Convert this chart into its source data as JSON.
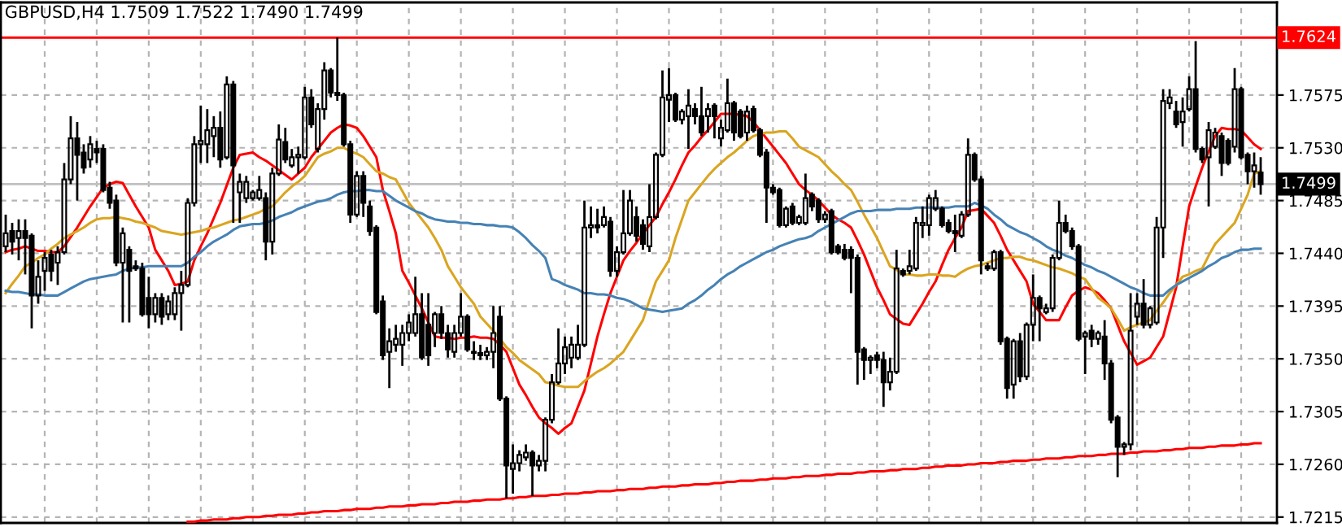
{
  "chart_data": {
    "type": "candlestick",
    "title": "GBPUSD,H4 1.7509 1.7522 1.7490 1.7499",
    "categories": [
      null,
      null,
      null,
      null,
      null,
      null,
      null,
      null,
      null,
      null,
      null,
      null,
      null,
      null,
      null,
      null,
      null,
      null,
      null,
      null,
      null,
      null,
      null,
      null,
      null,
      null,
      null,
      null,
      null,
      null,
      null,
      null,
      null,
      null,
      null,
      null,
      null,
      null,
      null,
      null,
      null,
      null,
      null,
      null,
      null,
      null,
      null,
      null,
      null,
      null,
      null,
      null,
      null,
      null,
      null,
      null,
      null,
      null,
      null,
      null,
      null,
      null,
      null,
      null,
      null,
      null,
      null,
      null,
      null,
      null,
      null,
      null,
      null,
      null,
      null,
      null,
      null,
      null,
      null,
      null,
      null,
      null,
      null,
      null,
      null,
      null,
      null,
      null,
      null,
      null,
      null,
      null,
      null,
      null,
      null,
      null,
      null,
      null,
      null,
      null,
      null,
      null,
      null,
      null,
      null,
      null,
      null,
      null,
      null,
      null,
      null,
      null,
      null,
      null,
      null,
      null,
      null,
      null,
      null,
      null,
      null,
      null,
      null,
      null,
      null,
      null,
      null,
      null,
      null,
      null,
      null,
      null,
      null,
      null,
      null,
      null,
      null,
      null,
      null,
      null,
      null,
      null,
      null,
      null,
      null,
      null,
      null,
      null,
      null,
      null,
      null,
      null,
      null,
      null,
      null,
      null,
      null,
      null,
      null,
      null,
      null,
      null,
      null,
      null,
      null,
      null,
      null,
      null,
      null,
      null,
      null,
      null,
      null,
      null,
      null,
      null,
      null,
      null,
      null,
      null,
      null,
      null,
      null,
      null,
      null,
      null,
      null,
      null,
      null,
      null,
      null,
      null,
      null,
      null
    ],
    "ohlc": [
      [
        1.7446,
        1.7473,
        1.7441,
        1.7457
      ],
      [
        1.7459,
        1.7466,
        1.7439,
        1.745
      ],
      [
        1.7453,
        1.7469,
        1.7434,
        1.7459
      ],
      [
        1.7459,
        1.7469,
        1.7422,
        1.7453
      ],
      [
        1.7455,
        1.7457,
        1.7376,
        1.7404
      ],
      [
        1.7404,
        1.7434,
        1.7397,
        1.742
      ],
      [
        1.7425,
        1.7441,
        1.7408,
        1.7436
      ],
      [
        1.7439,
        1.7443,
        1.7416,
        1.7425
      ],
      [
        1.7432,
        1.7446,
        1.7413,
        1.7441
      ],
      [
        1.7441,
        1.7517,
        1.7439,
        1.7503
      ],
      [
        1.7503,
        1.7557,
        1.7499,
        1.7538
      ],
      [
        1.7538,
        1.7552,
        1.7485,
        1.7524
      ],
      [
        1.7526,
        1.7533,
        1.7508,
        1.7513
      ],
      [
        1.752,
        1.754,
        1.7513,
        1.7533
      ],
      [
        1.7529,
        1.7536,
        1.7517,
        1.7526
      ],
      [
        1.7529,
        1.7533,
        1.7492,
        1.7494
      ],
      [
        1.7496,
        1.7501,
        1.7478,
        1.7483
      ],
      [
        1.7485,
        1.749,
        1.7429,
        1.7432
      ],
      [
        1.7432,
        1.7462,
        1.7381,
        1.7457
      ],
      [
        1.7443,
        1.7446,
        1.7381,
        1.7425
      ],
      [
        1.7429,
        1.7434,
        1.7425,
        1.7427
      ],
      [
        1.7427,
        1.7432,
        1.7386,
        1.7388
      ],
      [
        1.7402,
        1.742,
        1.7376,
        1.7388
      ],
      [
        1.7388,
        1.7406,
        1.7381,
        1.7402
      ],
      [
        1.7402,
        1.7406,
        1.7379,
        1.7386
      ],
      [
        1.7388,
        1.7404,
        1.7383,
        1.7399
      ],
      [
        1.7388,
        1.7411,
        1.7383,
        1.7406
      ],
      [
        1.7406,
        1.7425,
        1.7374,
        1.7413
      ],
      [
        1.7413,
        1.7487,
        1.7411,
        1.7483
      ],
      [
        1.7483,
        1.754,
        1.748,
        1.7533
      ],
      [
        1.7533,
        1.7566,
        1.7517,
        1.7536
      ],
      [
        1.7533,
        1.7563,
        1.7517,
        1.7545
      ],
      [
        1.754,
        1.7557,
        1.7522,
        1.7547
      ],
      [
        1.7547,
        1.7561,
        1.7513,
        1.752
      ],
      [
        1.7522,
        1.7591,
        1.752,
        1.7584
      ],
      [
        1.7584,
        1.7587,
        1.7466,
        1.7515
      ],
      [
        1.7492,
        1.7508,
        1.7466,
        1.7501
      ],
      [
        1.7487,
        1.7506,
        1.7483,
        1.7501
      ],
      [
        1.7487,
        1.7494,
        1.7485,
        1.7492
      ],
      [
        1.7487,
        1.7506,
        1.7485,
        1.7494
      ],
      [
        1.7487,
        1.7492,
        1.7434,
        1.745
      ],
      [
        1.745,
        1.7513,
        1.7439,
        1.7508
      ],
      [
        1.7508,
        1.755,
        1.7506,
        1.7537
      ],
      [
        1.7535,
        1.7547,
        1.7517,
        1.752
      ],
      [
        1.7515,
        1.7529,
        1.7513,
        1.7522
      ],
      [
        1.7522,
        1.7531,
        1.7508,
        1.7524
      ],
      [
        1.7522,
        1.7582,
        1.752,
        1.7573
      ],
      [
        1.7573,
        1.758,
        1.7547,
        1.755
      ],
      [
        1.7529,
        1.7568,
        1.7526,
        1.7563
      ],
      [
        1.7563,
        1.7603,
        1.7554,
        1.7596
      ],
      [
        1.7596,
        1.7598,
        1.7573,
        1.7577
      ],
      [
        1.7577,
        1.7624,
        1.757,
        1.7575
      ],
      [
        1.7575,
        1.7577,
        1.7531,
        1.7533
      ],
      [
        1.7533,
        1.7536,
        1.7466,
        1.7473
      ],
      [
        1.7473,
        1.751,
        1.7471,
        1.7506
      ],
      [
        1.7506,
        1.751,
        1.7471,
        1.7483
      ],
      [
        1.748,
        1.7485,
        1.7455,
        1.7459
      ],
      [
        1.7462,
        1.7464,
        1.7388,
        1.739
      ],
      [
        1.7399,
        1.7404,
        1.7349,
        1.7353
      ],
      [
        1.7356,
        1.7376,
        1.7325,
        1.7365
      ],
      [
        1.7362,
        1.7379,
        1.7356,
        1.7367
      ],
      [
        1.7362,
        1.7379,
        1.7344,
        1.7372
      ],
      [
        1.7372,
        1.7388,
        1.7365,
        1.7381
      ],
      [
        1.7372,
        1.742,
        1.7369,
        1.7388
      ],
      [
        1.7388,
        1.7406,
        1.7349,
        1.7351
      ],
      [
        1.7379,
        1.7406,
        1.7344,
        1.7353
      ],
      [
        1.7372,
        1.739,
        1.736,
        1.7388
      ],
      [
        1.7388,
        1.7395,
        1.7367,
        1.7372
      ],
      [
        1.7372,
        1.7379,
        1.7351,
        1.7358
      ],
      [
        1.7356,
        1.7379,
        1.7351,
        1.7372
      ],
      [
        1.7372,
        1.7406,
        1.7369,
        1.7386
      ],
      [
        1.7386,
        1.7388,
        1.7356,
        1.7358
      ],
      [
        1.7356,
        1.7365,
        1.7349,
        1.7355
      ],
      [
        1.7355,
        1.7362,
        1.7349,
        1.7353
      ],
      [
        1.7353,
        1.736,
        1.7349,
        1.7356
      ],
      [
        1.7356,
        1.7395,
        1.7342,
        1.7372
      ],
      [
        1.7386,
        1.7395,
        1.7314,
        1.7316
      ],
      [
        1.7316,
        1.7318,
        1.7231,
        1.7259
      ],
      [
        1.7256,
        1.7277,
        1.7235,
        1.7261
      ],
      [
        1.7261,
        1.7272,
        1.7254,
        1.7268
      ],
      [
        1.7266,
        1.7277,
        1.7263,
        1.727
      ],
      [
        1.727,
        1.7272,
        1.7233,
        1.7259
      ],
      [
        1.7259,
        1.7268,
        1.7254,
        1.7263
      ],
      [
        1.7263,
        1.73,
        1.7254,
        1.7298
      ],
      [
        1.7298,
        1.7337,
        1.7295,
        1.733
      ],
      [
        1.733,
        1.7376,
        1.7328,
        1.7346
      ],
      [
        1.7346,
        1.7369,
        1.7337,
        1.736
      ],
      [
        1.7351,
        1.7369,
        1.7342,
        1.7362
      ],
      [
        1.7351,
        1.7379,
        1.7349,
        1.7362
      ],
      [
        1.7362,
        1.7485,
        1.736,
        1.7462
      ],
      [
        1.7462,
        1.748,
        1.7453,
        1.7464
      ],
      [
        1.7464,
        1.7478,
        1.7457,
        1.7462
      ],
      [
        1.7464,
        1.748,
        1.7462,
        1.7471
      ],
      [
        1.7467,
        1.7471,
        1.742,
        1.7425
      ],
      [
        1.7425,
        1.7446,
        1.742,
        1.7441
      ],
      [
        1.7441,
        1.7494,
        1.7439,
        1.7457
      ],
      [
        1.7457,
        1.7494,
        1.7455,
        1.7485
      ],
      [
        1.7471,
        1.748,
        1.745,
        1.7455
      ],
      [
        1.7464,
        1.7469,
        1.7443,
        1.7448
      ],
      [
        1.7446,
        1.7499,
        1.7441,
        1.7471
      ],
      [
        1.7471,
        1.7526,
        1.7469,
        1.7524
      ],
      [
        1.7524,
        1.7596,
        1.7522,
        1.7573
      ],
      [
        1.7571,
        1.7598,
        1.7552,
        1.7575
      ],
      [
        1.7575,
        1.7577,
        1.7552,
        1.7554
      ],
      [
        1.7554,
        1.7563,
        1.755,
        1.7561
      ],
      [
        1.7557,
        1.758,
        1.7529,
        1.7566
      ],
      [
        1.7563,
        1.7568,
        1.755,
        1.7557
      ],
      [
        1.7557,
        1.7582,
        1.754,
        1.7543
      ],
      [
        1.7557,
        1.7568,
        1.7543,
        1.7563
      ],
      [
        1.7566,
        1.7568,
        1.7538,
        1.7557
      ],
      [
        1.7538,
        1.7554,
        1.7531,
        1.7547
      ],
      [
        1.7545,
        1.7589,
        1.7543,
        1.7568
      ],
      [
        1.7568,
        1.757,
        1.7536,
        1.7543
      ],
      [
        1.7561,
        1.7563,
        1.7538,
        1.754
      ],
      [
        1.7543,
        1.7566,
        1.7536,
        1.7561
      ],
      [
        1.7563,
        1.7566,
        1.7543,
        1.7545
      ],
      [
        1.7545,
        1.7547,
        1.7522,
        1.7524
      ],
      [
        1.7526,
        1.7529,
        1.7466,
        1.7496
      ],
      [
        1.7496,
        1.7499,
        1.749,
        1.7492
      ],
      [
        1.7494,
        1.7496,
        1.7462,
        1.7464
      ],
      [
        1.7464,
        1.748,
        1.7462,
        1.7478
      ],
      [
        1.748,
        1.7483,
        1.7464,
        1.7466
      ],
      [
        1.7466,
        1.7473,
        1.7464,
        1.7471
      ],
      [
        1.7466,
        1.7508,
        1.7464,
        1.7487
      ],
      [
        1.749,
        1.7492,
        1.7476,
        1.748
      ],
      [
        1.7485,
        1.7487,
        1.7466,
        1.7469
      ],
      [
        1.7469,
        1.7476,
        1.7466,
        1.7473
      ],
      [
        1.7476,
        1.7478,
        1.7439,
        1.7441
      ],
      [
        1.7446,
        1.7448,
        1.7439,
        1.7441
      ],
      [
        1.7443,
        1.7448,
        1.7434,
        1.7436
      ],
      [
        1.7443,
        1.7446,
        1.7406,
        1.7436
      ],
      [
        1.7436,
        1.7439,
        1.7328,
        1.7356
      ],
      [
        1.7358,
        1.736,
        1.7332,
        1.7349
      ],
      [
        1.7349,
        1.7353,
        1.7337,
        1.7351
      ],
      [
        1.7353,
        1.7356,
        1.7342,
        1.7349
      ],
      [
        1.7349,
        1.7356,
        1.7309,
        1.733
      ],
      [
        1.733,
        1.7351,
        1.7323,
        1.7339
      ],
      [
        1.7339,
        1.7443,
        1.7337,
        1.7427
      ],
      [
        1.7425,
        1.7427,
        1.742,
        1.7422
      ],
      [
        1.7425,
        1.7443,
        1.7422,
        1.7429
      ],
      [
        1.7427,
        1.7471,
        1.7425,
        1.7466
      ],
      [
        1.7464,
        1.748,
        1.7453,
        1.7466
      ],
      [
        1.7464,
        1.749,
        1.7455,
        1.7487
      ],
      [
        1.7478,
        1.7494,
        1.7476,
        1.7487
      ],
      [
        1.7478,
        1.748,
        1.7462,
        1.7464
      ],
      [
        1.7466,
        1.7469,
        1.7457,
        1.7459
      ],
      [
        1.7459,
        1.7473,
        1.7441,
        1.7457
      ],
      [
        1.7455,
        1.7476,
        1.7453,
        1.7473
      ],
      [
        1.7473,
        1.7538,
        1.7471,
        1.7524
      ],
      [
        1.7524,
        1.7526,
        1.7501,
        1.7503
      ],
      [
        1.7503,
        1.7506,
        1.7422,
        1.7434
      ],
      [
        1.7429,
        1.7432,
        1.7425,
        1.7427
      ],
      [
        1.7427,
        1.7443,
        1.7425,
        1.7441
      ],
      [
        1.7441,
        1.7443,
        1.7362,
        1.7365
      ],
      [
        1.7367,
        1.7369,
        1.7316,
        1.7325
      ],
      [
        1.7328,
        1.7367,
        1.7316,
        1.7365
      ],
      [
        1.7365,
        1.7372,
        1.733,
        1.7335
      ],
      [
        1.7335,
        1.7381,
        1.7332,
        1.7379
      ],
      [
        1.7379,
        1.7422,
        1.7365,
        1.7402
      ],
      [
        1.7402,
        1.7404,
        1.7365,
        1.7393
      ],
      [
        1.739,
        1.7397,
        1.7388,
        1.7393
      ],
      [
        1.7393,
        1.7439,
        1.739,
        1.7436
      ],
      [
        1.7436,
        1.7485,
        1.7434,
        1.7466
      ],
      [
        1.7466,
        1.7473,
        1.7457,
        1.7459
      ],
      [
        1.7459,
        1.7462,
        1.7443,
        1.7446
      ],
      [
        1.7446,
        1.7448,
        1.7365,
        1.7367
      ],
      [
        1.7369,
        1.7374,
        1.7337,
        1.7372
      ],
      [
        1.7374,
        1.7379,
        1.736,
        1.7367
      ],
      [
        1.7367,
        1.7374,
        1.7362,
        1.7372
      ],
      [
        1.7369,
        1.7383,
        1.7332,
        1.7346
      ],
      [
        1.7346,
        1.7349,
        1.7295,
        1.7298
      ],
      [
        1.73,
        1.7302,
        1.7249,
        1.7275
      ],
      [
        1.7275,
        1.7279,
        1.7268,
        1.7277
      ],
      [
        1.7277,
        1.7406,
        1.7272,
        1.7374
      ],
      [
        1.7386,
        1.7406,
        1.7379,
        1.7397
      ],
      [
        1.7397,
        1.7418,
        1.7376,
        1.7379
      ],
      [
        1.7379,
        1.7395,
        1.7376,
        1.7393
      ],
      [
        1.7381,
        1.7471,
        1.7379,
        1.7462
      ],
      [
        1.7462,
        1.758,
        1.7436,
        1.757
      ],
      [
        1.7568,
        1.758,
        1.7563,
        1.7573
      ],
      [
        1.7561,
        1.757,
        1.7547,
        1.755
      ],
      [
        1.7552,
        1.7573,
        1.7531,
        1.7561
      ],
      [
        1.7563,
        1.7591,
        1.7561,
        1.758
      ],
      [
        1.758,
        1.7621,
        1.7526,
        1.7529
      ],
      [
        1.7529,
        1.7531,
        1.7517,
        1.752
      ],
      [
        1.7522,
        1.7552,
        1.748,
        1.7545
      ],
      [
        1.7531,
        1.7547,
        1.7529,
        1.7543
      ],
      [
        1.754,
        1.7543,
        1.7506,
        1.7517
      ],
      [
        1.7536,
        1.7538,
        1.7515,
        1.7517
      ],
      [
        1.7531,
        1.7598,
        1.7526,
        1.758
      ],
      [
        1.758,
        1.7582,
        1.752,
        1.7522
      ],
      [
        1.7524,
        1.7526,
        1.7499,
        1.751
      ],
      [
        1.751,
        1.7526,
        1.7496,
        1.7515
      ],
      [
        1.7509,
        1.7522,
        1.749,
        1.7499
      ]
    ],
    "color": "#000000",
    "ylim": [
      1.721,
      1.7654
    ],
    "yticks": [
      1.7215,
      {
        "value": 1.726,
        "label": "1.7260"
      },
      1.7305,
      {
        "value": 1.735,
        "label": "1.7350"
      },
      1.7395,
      {
        "value": 1.744,
        "label": "1.7440"
      },
      1.7485,
      {
        "value": 1.753,
        "label": "1.7530"
      },
      1.7575
    ],
    "grid": true,
    "tick_labels": "y",
    "ref_lines": [
      {
        "axis": "y",
        "value": 1.7624,
        "label": "1.7624",
        "color": "#ff0000"
      },
      {
        "axis": "y",
        "value": 1.7499,
        "label": "1.7499",
        "color": "#c0c0c0"
      }
    ],
    "series": [
      {
        "type": "line",
        "color": "#ff0000",
        "values": [
          1.7441,
          1.7443,
          1.7444,
          1.7446,
          1.7444,
          1.7442,
          1.7442,
          1.7441,
          1.7441,
          1.7446,
          1.7454,
          1.7462,
          1.7471,
          1.748,
          1.7488,
          1.7496,
          1.7499,
          1.7501,
          1.75,
          1.749,
          1.748,
          1.7471,
          1.7462,
          1.7443,
          1.7434,
          1.7425,
          1.7413,
          1.7414,
          1.7416,
          1.7434,
          1.7446,
          1.7457,
          1.747,
          1.7483,
          1.7498,
          1.7513,
          1.7524,
          1.7525,
          1.7526,
          1.7522,
          1.7519,
          1.7515,
          1.7511,
          1.7507,
          1.7503,
          1.7508,
          1.7513,
          1.7522,
          1.7529,
          1.7536,
          1.7543,
          1.7547,
          1.755,
          1.7549,
          1.7547,
          1.754,
          1.7531,
          1.7522,
          1.7494,
          1.7476,
          1.7457,
          1.7425,
          1.7415,
          1.7404,
          1.7393,
          1.7381,
          1.7369,
          1.7368,
          1.7368,
          1.7367,
          1.7368,
          1.7368,
          1.7369,
          1.7368,
          1.7368,
          1.7367,
          1.7362,
          1.7356,
          1.7342,
          1.7328,
          1.7319,
          1.7309,
          1.73,
          1.7295,
          1.7291,
          1.7286,
          1.7291,
          1.7295,
          1.7309,
          1.7323,
          1.7346,
          1.7369,
          1.7388,
          1.7406,
          1.742,
          1.7434,
          1.7442,
          1.7449,
          1.7457,
          1.7464,
          1.7471,
          1.7482,
          1.7492,
          1.7503,
          1.7515,
          1.7526,
          1.7532,
          1.7539,
          1.7545,
          1.7552,
          1.7559,
          1.7559,
          1.7559,
          1.7558,
          1.7557,
          1.7552,
          1.7545,
          1.7538,
          1.7531,
          1.7524,
          1.7517,
          1.7508,
          1.7499,
          1.7494,
          1.749,
          1.7485,
          1.7479,
          1.7473,
          1.7469,
          1.7466,
          1.7462,
          1.7451,
          1.7439,
          1.7425,
          1.7411,
          1.74,
          1.7388,
          1.7384,
          1.738,
          1.7379,
          1.7388,
          1.7397,
          1.7407,
          1.7416,
          1.743,
          1.7443,
          1.7453,
          1.7462,
          1.7476,
          1.7477,
          1.7478,
          1.7472,
          1.7466,
          1.7455,
          1.7443,
          1.7434,
          1.7425,
          1.7416,
          1.7397,
          1.739,
          1.7383,
          1.7383,
          1.7383,
          1.7394,
          1.7404,
          1.7408,
          1.7411,
          1.7409,
          1.7406,
          1.74,
          1.7393,
          1.7379,
          1.7365,
          1.7355,
          1.7345,
          1.7348,
          1.7351,
          1.736,
          1.7369,
          1.739,
          1.7411,
          1.7446,
          1.748,
          1.7497,
          1.7513,
          1.7527,
          1.754,
          1.7547,
          1.7546,
          1.7546,
          1.7545,
          1.7539,
          1.7533,
          1.7529
        ]
      },
      {
        "type": "line",
        "color": "#daa520",
        "values": [
          1.7406,
          1.7414,
          1.7421,
          1.7429,
          1.7432,
          1.7436,
          1.7439,
          1.7444,
          1.7448,
          1.7453,
          1.7456,
          1.7459,
          1.7462,
          1.7466,
          1.7469,
          1.747,
          1.747,
          1.7471,
          1.747,
          1.7469,
          1.7467,
          1.7466,
          1.7464,
          1.7462,
          1.7459,
          1.7458,
          1.7457,
          1.7456,
          1.7457,
          1.7458,
          1.7459,
          1.7461,
          1.7462,
          1.7464,
          1.7466,
          1.7468,
          1.7469,
          1.7471,
          1.7473,
          1.7475,
          1.7478,
          1.748,
          1.7486,
          1.7492,
          1.7497,
          1.7501,
          1.7506,
          1.7514,
          1.7522,
          1.7525,
          1.7527,
          1.753,
          1.753,
          1.7527,
          1.7525,
          1.7522,
          1.7516,
          1.751,
          1.7508,
          1.7505,
          1.7503,
          1.7493,
          1.7483,
          1.7476,
          1.7469,
          1.7462,
          1.7453,
          1.7443,
          1.7429,
          1.742,
          1.7411,
          1.7404,
          1.7397,
          1.7386,
          1.738,
          1.7374,
          1.7367,
          1.736,
          1.7355,
          1.7349,
          1.7345,
          1.7341,
          1.7337,
          1.733,
          1.7329,
          1.7327,
          1.7326,
          1.7326,
          1.7326,
          1.7331,
          1.7335,
          1.7339,
          1.7342,
          1.7346,
          1.7351,
          1.7356,
          1.7365,
          1.7374,
          1.7383,
          1.74,
          1.7416,
          1.7425,
          1.7434,
          1.7453,
          1.7469,
          1.7485,
          1.7492,
          1.7499,
          1.7506,
          1.7512,
          1.7517,
          1.7522,
          1.7526,
          1.7531,
          1.7536,
          1.754,
          1.7542,
          1.7543,
          1.7543,
          1.7544,
          1.7544,
          1.7538,
          1.7531,
          1.7528,
          1.7525,
          1.7522,
          1.7516,
          1.751,
          1.7505,
          1.7499,
          1.7494,
          1.7484,
          1.7473,
          1.7463,
          1.7453,
          1.7441,
          1.7429,
          1.7426,
          1.7422,
          1.7422,
          1.7421,
          1.7421,
          1.7422,
          1.7422,
          1.7421,
          1.7421,
          1.742,
          1.7424,
          1.7427,
          1.7429,
          1.743,
          1.7432,
          1.7434,
          1.7436,
          1.7436,
          1.7437,
          1.7437,
          1.7435,
          1.7434,
          1.7432,
          1.743,
          1.7428,
          1.7427,
          1.7425,
          1.7423,
          1.742,
          1.7418,
          1.741,
          1.7402,
          1.7398,
          1.7393,
          1.7384,
          1.7374,
          1.7377,
          1.7379,
          1.7381,
          1.7383,
          1.7391,
          1.7398,
          1.7406,
          1.7413,
          1.742,
          1.7422,
          1.7425,
          1.7427,
          1.7438,
          1.7448,
          1.7454,
          1.746,
          1.7466,
          1.7478,
          1.749,
          1.7508,
          1.751
        ]
      },
      {
        "type": "line",
        "color": "#4682b4",
        "values": [
          1.7408,
          1.7407,
          1.7407,
          1.7406,
          1.7405,
          1.7405,
          1.7404,
          1.7404,
          1.7404,
          1.7407,
          1.741,
          1.7413,
          1.7416,
          1.7418,
          1.7419,
          1.742,
          1.7421,
          1.7422,
          1.7425,
          1.7427,
          1.7428,
          1.7428,
          1.7429,
          1.7429,
          1.7429,
          1.7429,
          1.7429,
          1.7429,
          1.7432,
          1.7437,
          1.7441,
          1.7446,
          1.745,
          1.7453,
          1.7456,
          1.746,
          1.7463,
          1.7464,
          1.7465,
          1.7465,
          1.7466,
          1.7468,
          1.7471,
          1.7473,
          1.7475,
          1.7478,
          1.748,
          1.7482,
          1.7484,
          1.7485,
          1.7487,
          1.749,
          1.7492,
          1.7493,
          1.7493,
          1.7494,
          1.7494,
          1.7493,
          1.7493,
          1.7489,
          1.7485,
          1.7482,
          1.7479,
          1.7476,
          1.7474,
          1.7471,
          1.7469,
          1.7468,
          1.7467,
          1.7467,
          1.7466,
          1.7466,
          1.7465,
          1.7465,
          1.7464,
          1.7464,
          1.7463,
          1.7463,
          1.7462,
          1.7458,
          1.7453,
          1.7447,
          1.7442,
          1.7436,
          1.7418,
          1.7416,
          1.7413,
          1.7411,
          1.7409,
          1.7406,
          1.7406,
          1.7405,
          1.7405,
          1.7404,
          1.7402,
          1.7401,
          1.7399,
          1.7396,
          1.7393,
          1.7392,
          1.7391,
          1.739,
          1.7391,
          1.7392,
          1.7393,
          1.7397,
          1.74,
          1.7404,
          1.7409,
          1.7413,
          1.7418,
          1.7422,
          1.7425,
          1.7429,
          1.7432,
          1.7435,
          1.7438,
          1.7441,
          1.7443,
          1.7446,
          1.7448,
          1.745,
          1.7452,
          1.7453,
          1.7455,
          1.7459,
          1.7462,
          1.7465,
          1.7468,
          1.7471,
          1.7474,
          1.7476,
          1.7476,
          1.7476,
          1.7477,
          1.7477,
          1.7477,
          1.7478,
          1.7478,
          1.7478,
          1.7479,
          1.7479,
          1.7479,
          1.7479,
          1.7479,
          1.7479,
          1.748,
          1.748,
          1.748,
          1.7483,
          1.7481,
          1.7478,
          1.7473,
          1.7469,
          1.7464,
          1.7461,
          1.7458,
          1.7456,
          1.7453,
          1.745,
          1.7446,
          1.7443,
          1.7441,
          1.7438,
          1.7436,
          1.7433,
          1.743,
          1.7428,
          1.7425,
          1.7423,
          1.742,
          1.7417,
          1.7414,
          1.7411,
          1.7409,
          1.7406,
          1.7404,
          1.7404,
          1.7404,
          1.7409,
          1.7413,
          1.7416,
          1.7419,
          1.7422,
          1.7425,
          1.7429,
          1.7432,
          1.7436,
          1.7438,
          1.7441,
          1.7443,
          1.7443,
          1.7444,
          1.7444
        ]
      },
      {
        "type": "line",
        "color": "#ff0000",
        "values": [
          null,
          null,
          null,
          null,
          null,
          null,
          null,
          null,
          null,
          null,
          null,
          null,
          null,
          null,
          null,
          null,
          null,
          null,
          null,
          null,
          null,
          null,
          null,
          null,
          null,
          null,
          null,
          null,
          1.7211,
          1.7211,
          1.7212,
          1.7212,
          1.7213,
          1.7213,
          1.7213,
          1.7214,
          1.7214,
          1.7215,
          1.7215,
          1.7215,
          1.7216,
          1.7216,
          1.7217,
          1.7217,
          1.7217,
          1.7218,
          1.7218,
          1.7219,
          1.7219,
          1.722,
          1.722,
          1.722,
          1.7221,
          1.7221,
          1.7222,
          1.7222,
          1.7222,
          1.7223,
          1.7223,
          1.7224,
          1.7224,
          1.7224,
          1.7225,
          1.7225,
          1.7226,
          1.7226,
          1.7226,
          1.7227,
          1.7227,
          1.7228,
          1.7228,
          1.7228,
          1.7229,
          1.7229,
          1.723,
          1.723,
          1.723,
          1.7231,
          1.7231,
          1.7232,
          1.7232,
          1.7233,
          1.7233,
          1.7233,
          1.7234,
          1.7234,
          1.7235,
          1.7235,
          1.7235,
          1.7236,
          1.7236,
          1.7237,
          1.7237,
          1.7237,
          1.7238,
          1.7238,
          1.7239,
          1.7239,
          1.7239,
          1.724,
          1.724,
          1.7241,
          1.7241,
          1.7241,
          1.7242,
          1.7242,
          1.7243,
          1.7243,
          1.7243,
          1.7244,
          1.7244,
          1.7245,
          1.7245,
          1.7246,
          1.7246,
          1.7246,
          1.7247,
          1.7247,
          1.7248,
          1.7248,
          1.7248,
          1.7249,
          1.7249,
          1.725,
          1.725,
          1.725,
          1.7251,
          1.7251,
          1.7252,
          1.7252,
          1.7252,
          1.7253,
          1.7253,
          1.7254,
          1.7254,
          1.7254,
          1.7255,
          1.7255,
          1.7256,
          1.7256,
          1.7256,
          1.7257,
          1.7257,
          1.7258,
          1.7258,
          1.7259,
          1.7259,
          1.7259,
          1.726,
          1.726,
          1.7261,
          1.7261,
          1.7261,
          1.7262,
          1.7262,
          1.7263,
          1.7263,
          1.7263,
          1.7264,
          1.7264,
          1.7265,
          1.7265,
          1.7265,
          1.7266,
          1.7266,
          1.7267,
          1.7267,
          1.7267,
          1.7268,
          1.7268,
          1.7269,
          1.7269,
          1.7269,
          1.727,
          1.727,
          1.7271,
          1.7271,
          1.7271,
          1.7272,
          1.7272,
          1.7273,
          1.7273,
          1.7274,
          1.7274,
          1.7274,
          1.7275,
          1.7275,
          1.7276,
          1.7276,
          1.7276,
          1.7277,
          1.7277,
          1.7278,
          1.7278
        ]
      }
    ]
  }
}
